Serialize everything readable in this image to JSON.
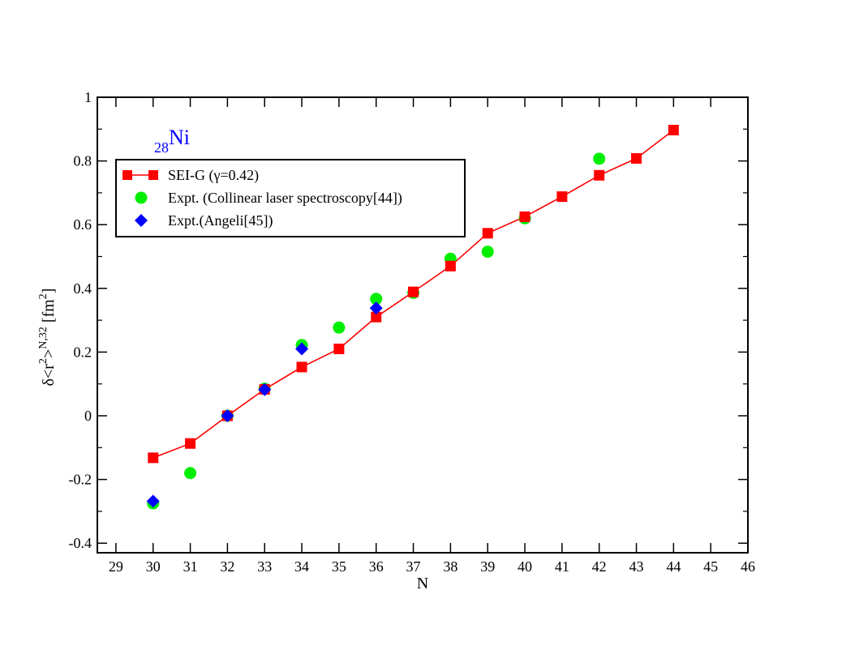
{
  "chart_data": {
    "type": "line",
    "annotation": {
      "prefix": "28",
      "element": "Ni",
      "color": "#0000ff"
    },
    "xlabel": "N",
    "ylabel": {
      "prefix": "δ<r",
      "sup1": "2",
      "middle": ">",
      "sup2": "N,32",
      "unit_open": " [fm",
      "sup3": "2",
      "unit_close": "]"
    },
    "xlim": [
      28.5,
      46
    ],
    "ylim": [
      -0.43,
      1
    ],
    "xticks": [
      29,
      30,
      31,
      32,
      33,
      34,
      35,
      36,
      37,
      38,
      39,
      40,
      41,
      42,
      43,
      44,
      45,
      46
    ],
    "yticks": [
      -0.4,
      -0.2,
      0,
      0.2,
      0.4,
      0.6,
      0.8,
      1
    ],
    "ytick_labels": [
      "-0.4",
      "-0.2",
      "0",
      "0.2",
      "0.4",
      "0.6",
      "0.8",
      "1"
    ],
    "grid": false,
    "legend_position": "top-left",
    "series": [
      {
        "name": "SEI-G (γ=0.42)",
        "marker": "square",
        "color": "#ff0000",
        "line": true,
        "x": [
          30,
          31,
          32,
          33,
          34,
          35,
          36,
          37,
          38,
          39,
          40,
          41,
          42,
          43,
          44
        ],
        "y": [
          -0.132,
          -0.087,
          0.0,
          0.083,
          0.153,
          0.21,
          0.31,
          0.389,
          0.47,
          0.573,
          0.625,
          0.688,
          0.755,
          0.808,
          0.897
        ]
      },
      {
        "name": "Expt. (Collinear laser spectroscopy[44])",
        "marker": "circle",
        "color": "#00ee00",
        "line": false,
        "x": [
          30,
          31,
          32,
          33,
          34,
          35,
          36,
          37,
          38,
          39,
          40,
          42
        ],
        "y": [
          -0.275,
          -0.18,
          0.0,
          0.085,
          0.222,
          0.277,
          0.367,
          0.386,
          0.493,
          0.515,
          0.62,
          0.807
        ]
      },
      {
        "name": "Expt.(Angeli[45])",
        "marker": "diamond",
        "color": "#0000ff",
        "line": false,
        "x": [
          30,
          32,
          33,
          34,
          36
        ],
        "y": [
          -0.268,
          0.0,
          0.082,
          0.21,
          0.338
        ]
      }
    ]
  }
}
